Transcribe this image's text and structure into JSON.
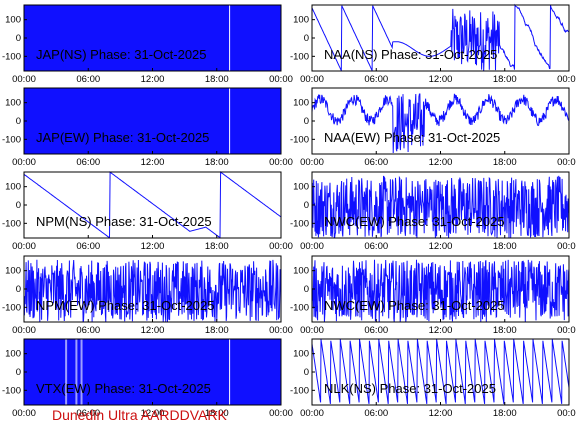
{
  "footer_text": "Dunedin Ultra AARDDVARK",
  "colors": {
    "trace": "#1010ff",
    "footer": "#cc1111",
    "axis": "#000000"
  },
  "chart_data": [
    {
      "type": "line",
      "title": "JAP(NS) Phase: 31-Oct-2025",
      "x_ticks": [
        "00:00",
        "06:00",
        "12:00",
        "18:00",
        "00:00"
      ],
      "y_ticks": [
        "100",
        "0",
        "-100"
      ],
      "ylim": [
        -180,
        180
      ],
      "xlim": [
        "00:00",
        "24:00"
      ],
      "pattern": "solid",
      "series": []
    },
    {
      "type": "line",
      "title": "NAA(NS) Phase: 31-Oct-2025",
      "x_ticks": [
        "00:00",
        "06:00",
        "12:00",
        "18:00",
        "00:00"
      ],
      "y_ticks": [
        "100",
        "0",
        "-100"
      ],
      "ylim": [
        -180,
        180
      ],
      "xlim": [
        "00:00",
        "24:00"
      ],
      "pattern": "naa_ns",
      "series": []
    },
    {
      "type": "line",
      "title": "JAP(EW) Phase: 31-Oct-2025",
      "x_ticks": [
        "00:00",
        "06:00",
        "12:00",
        "18:00",
        "00:00"
      ],
      "y_ticks": [
        "100",
        "0",
        "-100"
      ],
      "ylim": [
        -180,
        180
      ],
      "xlim": [
        "00:00",
        "24:00"
      ],
      "pattern": "solid",
      "series": []
    },
    {
      "type": "line",
      "title": "NAA(EW) Phase: 31-Oct-2025",
      "x_ticks": [
        "00:00",
        "06:00",
        "12:00",
        "18:00",
        "00:00"
      ],
      "y_ticks": [
        "100",
        "0",
        "-100"
      ],
      "ylim": [
        -180,
        180
      ],
      "xlim": [
        "00:00",
        "24:00"
      ],
      "pattern": "naa_ew",
      "series": []
    },
    {
      "type": "line",
      "title": "NPM(NS) Phase: 31-Oct-2025",
      "x_ticks": [
        "00:00",
        "06:00",
        "12:00",
        "18:00",
        "00:00"
      ],
      "y_ticks": [
        "100",
        "0",
        "-100"
      ],
      "ylim": [
        -180,
        180
      ],
      "xlim": [
        "00:00",
        "24:00"
      ],
      "pattern": "npm",
      "series": []
    },
    {
      "type": "line",
      "title": "NWC(EW) Phase: 31-Oct-2025",
      "x_ticks": [
        "00:00",
        "06:00",
        "12:00",
        "18:00",
        "00:00"
      ],
      "y_ticks": [
        "100",
        "0",
        "-100"
      ],
      "ylim": [
        -180,
        180
      ],
      "xlim": [
        "00:00",
        "24:00"
      ],
      "pattern": "noisy",
      "series": []
    },
    {
      "type": "line",
      "title": "NPM(EW) Phase: 31-Oct-2025",
      "x_ticks": [
        "00:00",
        "06:00",
        "12:00",
        "18:00",
        "00:00"
      ],
      "y_ticks": [
        "100",
        "0",
        "-100"
      ],
      "ylim": [
        -180,
        180
      ],
      "xlim": [
        "00:00",
        "24:00"
      ],
      "pattern": "noisy",
      "series": []
    },
    {
      "type": "line",
      "title": "NWC(EW) Phase: 31-Oct-2025",
      "x_ticks": [
        "00:00",
        "06:00",
        "12:00",
        "18:00",
        "00:00"
      ],
      "y_ticks": [
        "100",
        "0",
        "-100"
      ],
      "ylim": [
        -180,
        180
      ],
      "xlim": [
        "00:00",
        "24:00"
      ],
      "pattern": "noisy",
      "series": []
    },
    {
      "type": "line",
      "title": "VTX(EW) Phase: 31-Oct-2025",
      "x_ticks": [
        "00:00",
        "06:00",
        "12:00",
        "18:00",
        "00:00"
      ],
      "y_ticks": [
        "100",
        "0",
        "-100"
      ],
      "ylim": [
        -180,
        180
      ],
      "xlim": [
        "00:00",
        "24:00"
      ],
      "pattern": "vtx",
      "series": []
    },
    {
      "type": "line",
      "title": "NLK(NS) Phase: 31-Oct-2025",
      "x_ticks": [
        "00:00",
        "06:00",
        "12:00",
        "18:00",
        "00:00"
      ],
      "y_ticks": [
        "100",
        "0",
        "-100"
      ],
      "ylim": [
        -180,
        180
      ],
      "xlim": [
        "00:00",
        "24:00"
      ],
      "pattern": "nlk",
      "series": []
    }
  ]
}
